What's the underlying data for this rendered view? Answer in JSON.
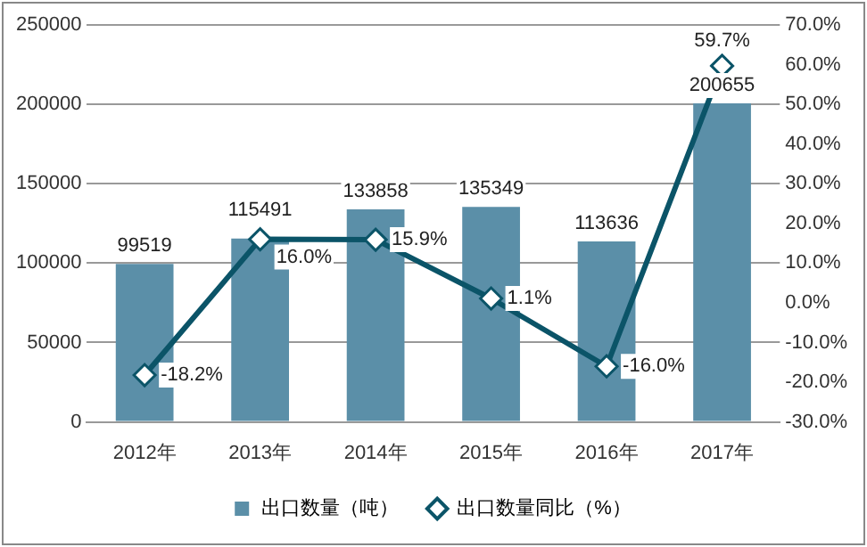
{
  "chart_data": {
    "type": "bar",
    "categories": [
      "2012年",
      "2013年",
      "2014年",
      "2015年",
      "2016年",
      "2017年"
    ],
    "series": [
      {
        "name": "出口数量（吨）",
        "color": "#5b8fa8",
        "values": [
          99519,
          115491,
          133858,
          135349,
          113636,
          200655
        ]
      },
      {
        "name": "出口数量同比（%）",
        "type": "line",
        "axis": "y2",
        "color": "#0b5468",
        "marker": "diamond",
        "values": [
          -18.2,
          16.0,
          15.9,
          1.1,
          -16.0,
          59.7
        ],
        "value_labels": [
          "-18.2%",
          "16.0%",
          "15.9%",
          "1.1%",
          "-16.0%",
          "59.7%"
        ]
      }
    ],
    "ylim": [
      0,
      250000
    ],
    "yticks": [
      0,
      50000,
      100000,
      150000,
      200000,
      250000
    ],
    "y2lim": [
      -30,
      70
    ],
    "y2ticks": [
      {
        "value": -30,
        "label": "-30.0%"
      },
      {
        "value": -20,
        "label": "-20.0%"
      },
      {
        "value": -10,
        "label": "-10.0%"
      },
      {
        "value": 0,
        "label": "0.0%"
      },
      {
        "value": 10,
        "label": "10.0%"
      },
      {
        "value": 20,
        "label": "20.0%"
      },
      {
        "value": 30,
        "label": "30.0%"
      },
      {
        "value": 40,
        "label": "40.0%"
      },
      {
        "value": 50,
        "label": "50.0%"
      },
      {
        "value": 60,
        "label": "60.0%"
      },
      {
        "value": 70,
        "label": "70.0%"
      }
    ],
    "grid": "y",
    "legend": "bottom",
    "data_labels": true
  }
}
